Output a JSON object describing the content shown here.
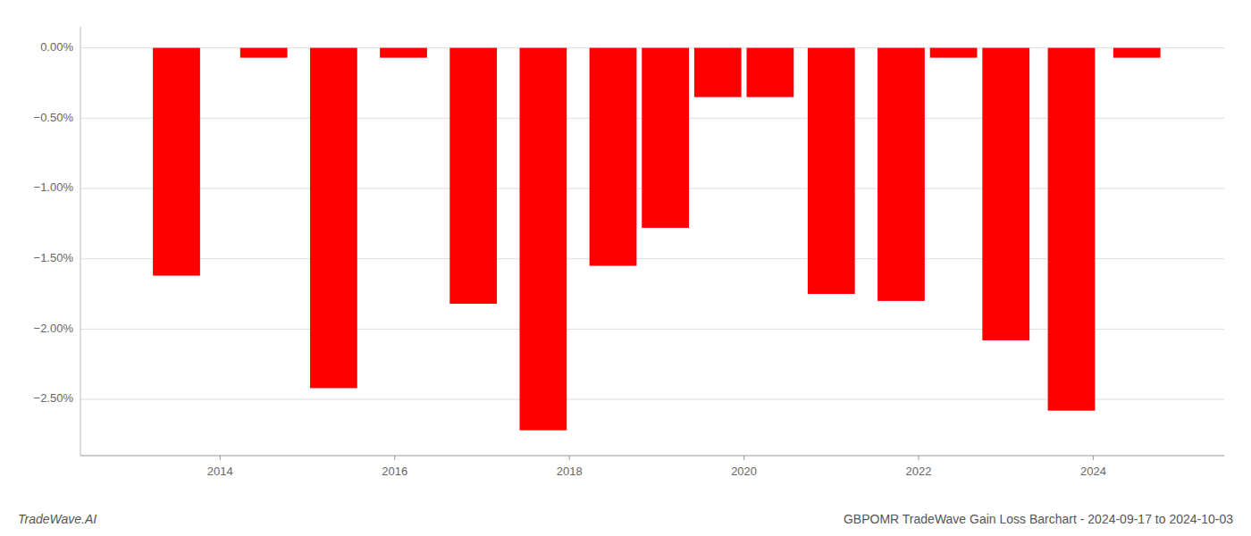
{
  "chart_data": {
    "type": "bar",
    "title": "GBPOMR TradeWave Gain Loss Barchart - 2024-09-17 to 2024-10-03",
    "annotations": [
      "TradeWave.AI"
    ],
    "x": [
      2013.5,
      2014.5,
      2015.3,
      2016.1,
      2016.9,
      2017.7,
      2018.5,
      2019.1,
      2019.7,
      2020.3,
      2021.0,
      2021.8,
      2022.4,
      2023.0,
      2023.75,
      2024.5
    ],
    "values": [
      -1.62,
      -0.07,
      -2.42,
      -0.07,
      -1.82,
      -2.72,
      -1.55,
      -1.28,
      -0.35,
      -0.35,
      -1.75,
      -1.8,
      -0.07,
      -2.08,
      -2.58,
      -0.07
    ],
    "color": "#ff0000",
    "xlim": [
      2012.4,
      2025.5
    ],
    "xticks": [
      2014,
      2016,
      2018,
      2020,
      2022,
      2024
    ],
    "ylim": [
      -2.9,
      0.15
    ],
    "yticks": [
      {
        "value": 0.0,
        "label": "0.00%"
      },
      {
        "value": -0.5,
        "label": "−0.50%"
      },
      {
        "value": -1.0,
        "label": "−1.00%"
      },
      {
        "value": -1.5,
        "label": "−1.50%"
      },
      {
        "value": -2.0,
        "label": "−2.00%"
      },
      {
        "value": -2.5,
        "label": "−2.50%"
      }
    ],
    "grid": true
  }
}
